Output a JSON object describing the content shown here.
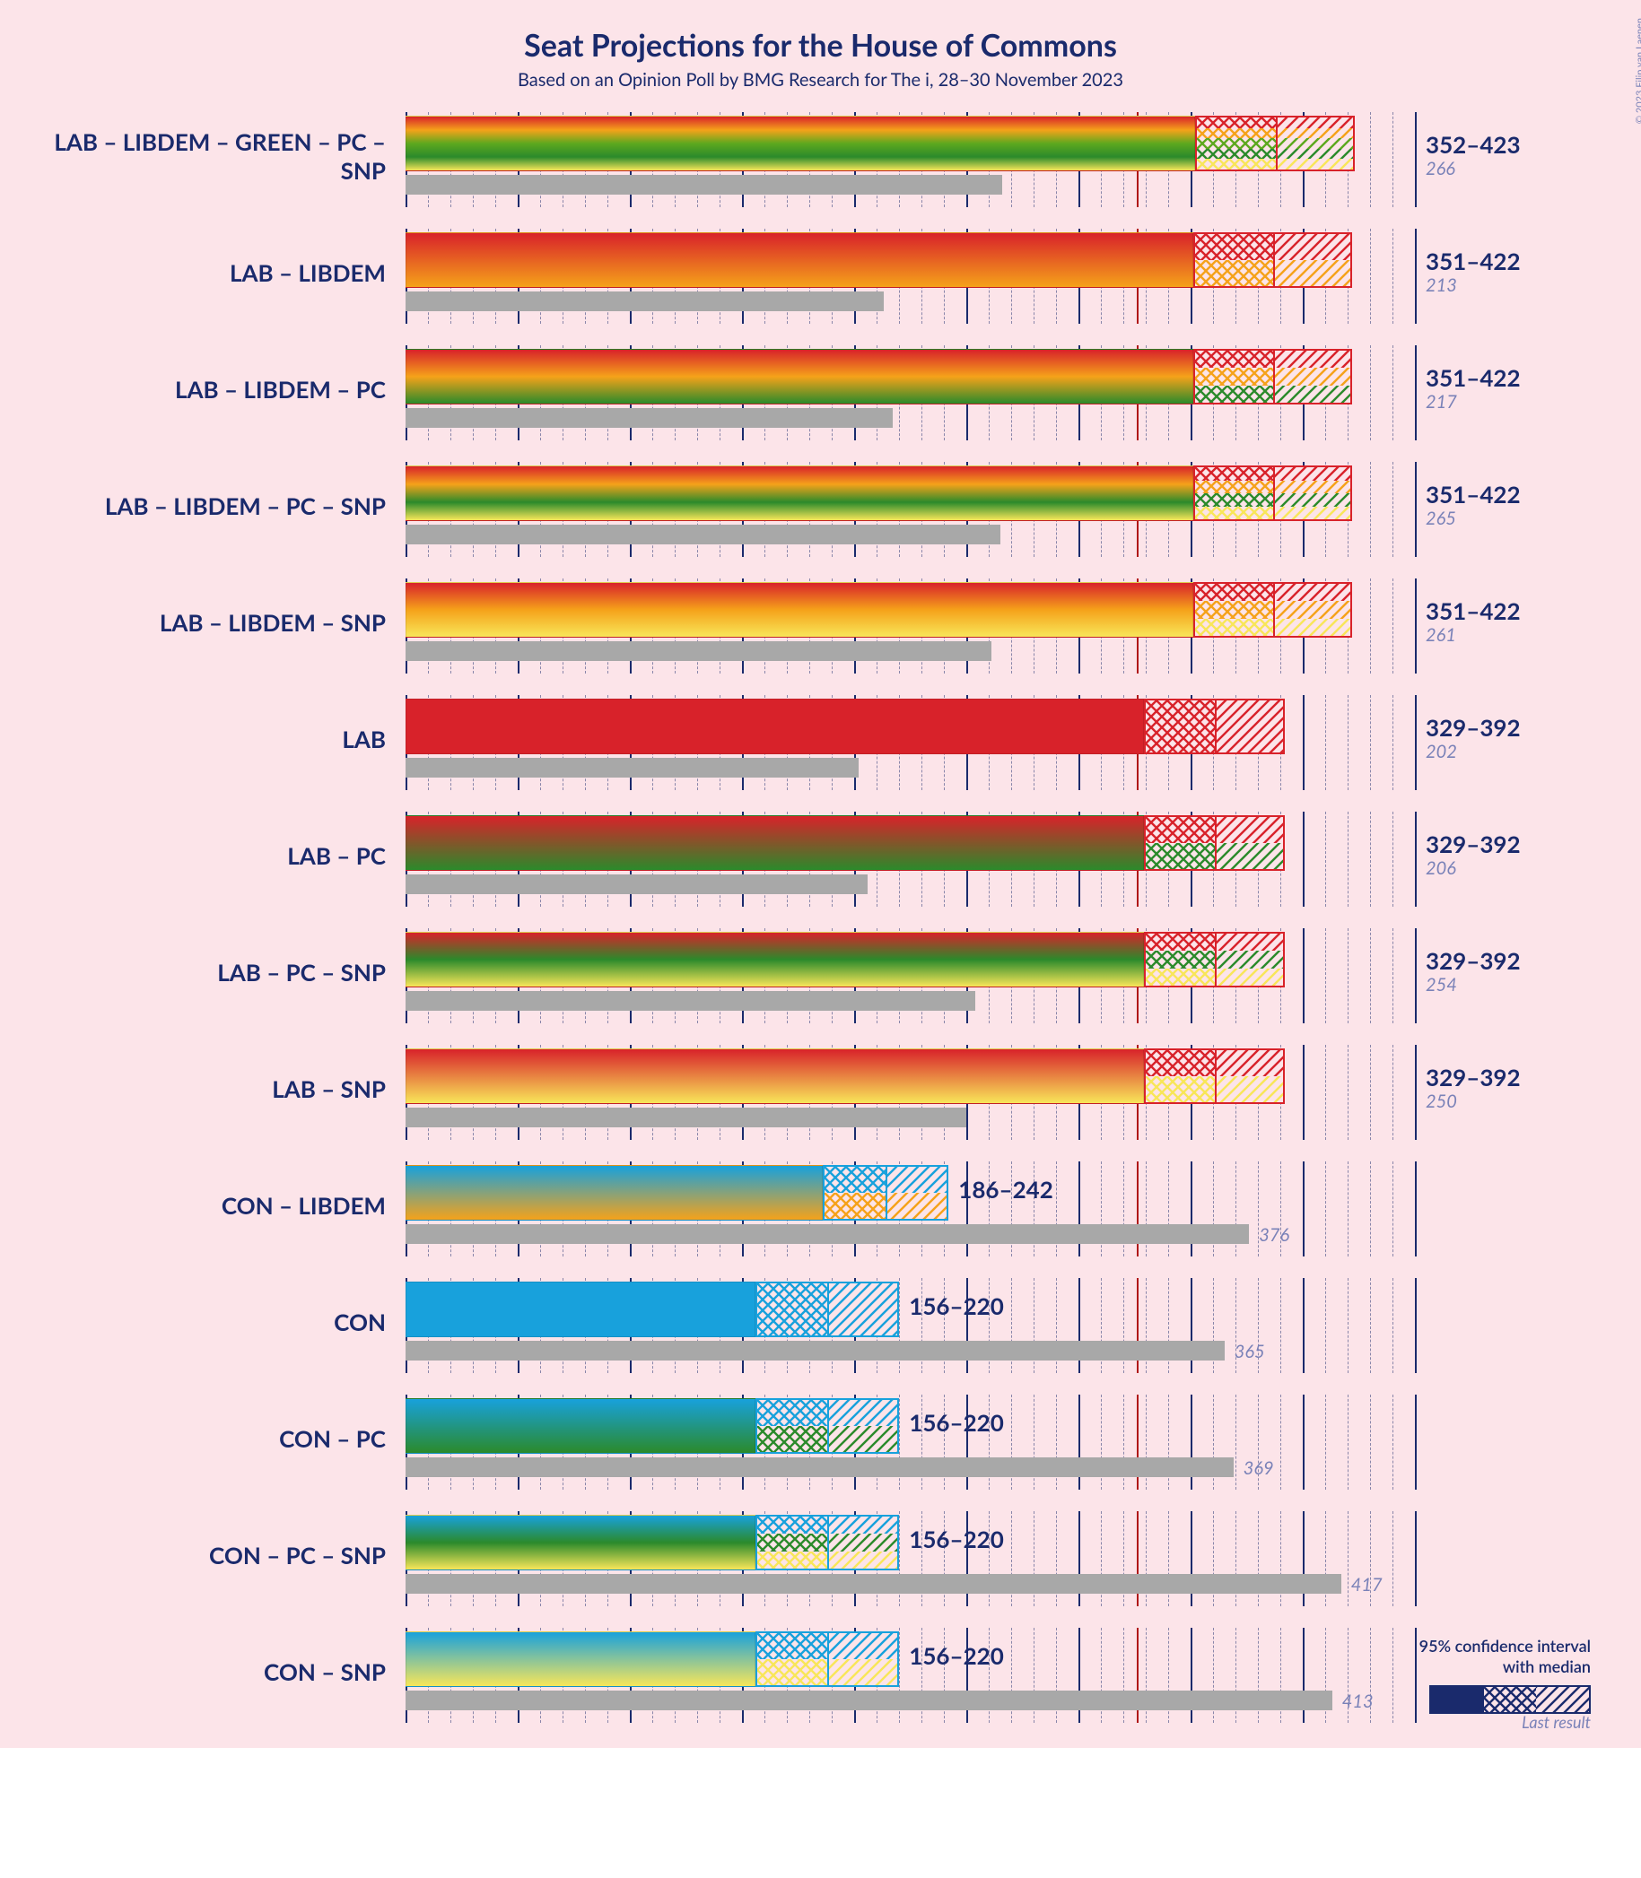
{
  "title": "Seat Projections for the House of Commons",
  "subtitle": "Based on an Opinion Poll by BMG Research for The i, 28–30 November 2023",
  "copyright": "© 2023 Filip van Laenen",
  "background_color": "#fce4e9",
  "title_color": "#1a2a6c",
  "subtitle_color": "#1a2a6c",
  "copyright_color": "#7a82b8",
  "grid_color": "#1a2a6c",
  "dash_color": "#1a2a6c",
  "majority_line_color": "#b01818",
  "lastbar_color": "#a8a8a8",
  "lastlabel_color": "#7a82b8",
  "scale": {
    "min": 0,
    "max": 450,
    "major_step": 50,
    "minor_per_major": 5,
    "majority": 326
  },
  "legend": {
    "line1": "95% confidence interval",
    "line2": "with median",
    "swatch_color": "#1a2a6c",
    "last_result": "Last result"
  },
  "party_colors": {
    "LAB": "#d8222a",
    "CON": "#18a1dc",
    "LIBDEM": "#f5a21a",
    "GREEN": "#5da81e",
    "PC": "#2b8a2b",
    "SNP": "#f8e659"
  },
  "rows": [
    {
      "label": "LAB – LIBDEM – GREEN – PC – SNP",
      "parties": [
        "LAB",
        "LIBDEM",
        "GREEN",
        "PC",
        "SNP"
      ],
      "low": 352,
      "median": 388,
      "high": 423,
      "last": 266,
      "range_text": "352–423"
    },
    {
      "label": "LAB – LIBDEM",
      "parties": [
        "LAB",
        "LIBDEM"
      ],
      "low": 351,
      "median": 387,
      "high": 422,
      "last": 213,
      "range_text": "351–422"
    },
    {
      "label": "LAB – LIBDEM – PC",
      "parties": [
        "LAB",
        "LIBDEM",
        "PC"
      ],
      "low": 351,
      "median": 387,
      "high": 422,
      "last": 217,
      "range_text": "351–422"
    },
    {
      "label": "LAB – LIBDEM – PC – SNP",
      "parties": [
        "LAB",
        "LIBDEM",
        "PC",
        "SNP"
      ],
      "low": 351,
      "median": 387,
      "high": 422,
      "last": 265,
      "range_text": "351–422"
    },
    {
      "label": "LAB – LIBDEM – SNP",
      "parties": [
        "LAB",
        "LIBDEM",
        "SNP"
      ],
      "low": 351,
      "median": 387,
      "high": 422,
      "last": 261,
      "range_text": "351–422"
    },
    {
      "label": "LAB",
      "parties": [
        "LAB"
      ],
      "low": 329,
      "median": 361,
      "high": 392,
      "last": 202,
      "range_text": "329–392"
    },
    {
      "label": "LAB – PC",
      "parties": [
        "LAB",
        "PC"
      ],
      "low": 329,
      "median": 361,
      "high": 392,
      "last": 206,
      "range_text": "329–392"
    },
    {
      "label": "LAB – PC – SNP",
      "parties": [
        "LAB",
        "PC",
        "SNP"
      ],
      "low": 329,
      "median": 361,
      "high": 392,
      "last": 254,
      "range_text": "329–392"
    },
    {
      "label": "LAB – SNP",
      "parties": [
        "LAB",
        "SNP"
      ],
      "low": 329,
      "median": 361,
      "high": 392,
      "last": 250,
      "range_text": "329–392"
    },
    {
      "label": "CON – LIBDEM",
      "parties": [
        "CON",
        "LIBDEM"
      ],
      "low": 186,
      "median": 214,
      "high": 242,
      "last": 376,
      "range_text": "186–242"
    },
    {
      "label": "CON",
      "parties": [
        "CON"
      ],
      "low": 156,
      "median": 188,
      "high": 220,
      "last": 365,
      "range_text": "156–220"
    },
    {
      "label": "CON – PC",
      "parties": [
        "CON",
        "PC"
      ],
      "low": 156,
      "median": 188,
      "high": 220,
      "last": 369,
      "range_text": "156–220"
    },
    {
      "label": "CON – PC – SNP",
      "parties": [
        "CON",
        "PC",
        "SNP"
      ],
      "low": 156,
      "median": 188,
      "high": 220,
      "last": 417,
      "range_text": "156–220"
    },
    {
      "label": "CON – SNP",
      "parties": [
        "CON",
        "SNP"
      ],
      "low": 156,
      "median": 188,
      "high": 220,
      "last": 413,
      "range_text": "156–220"
    }
  ]
}
